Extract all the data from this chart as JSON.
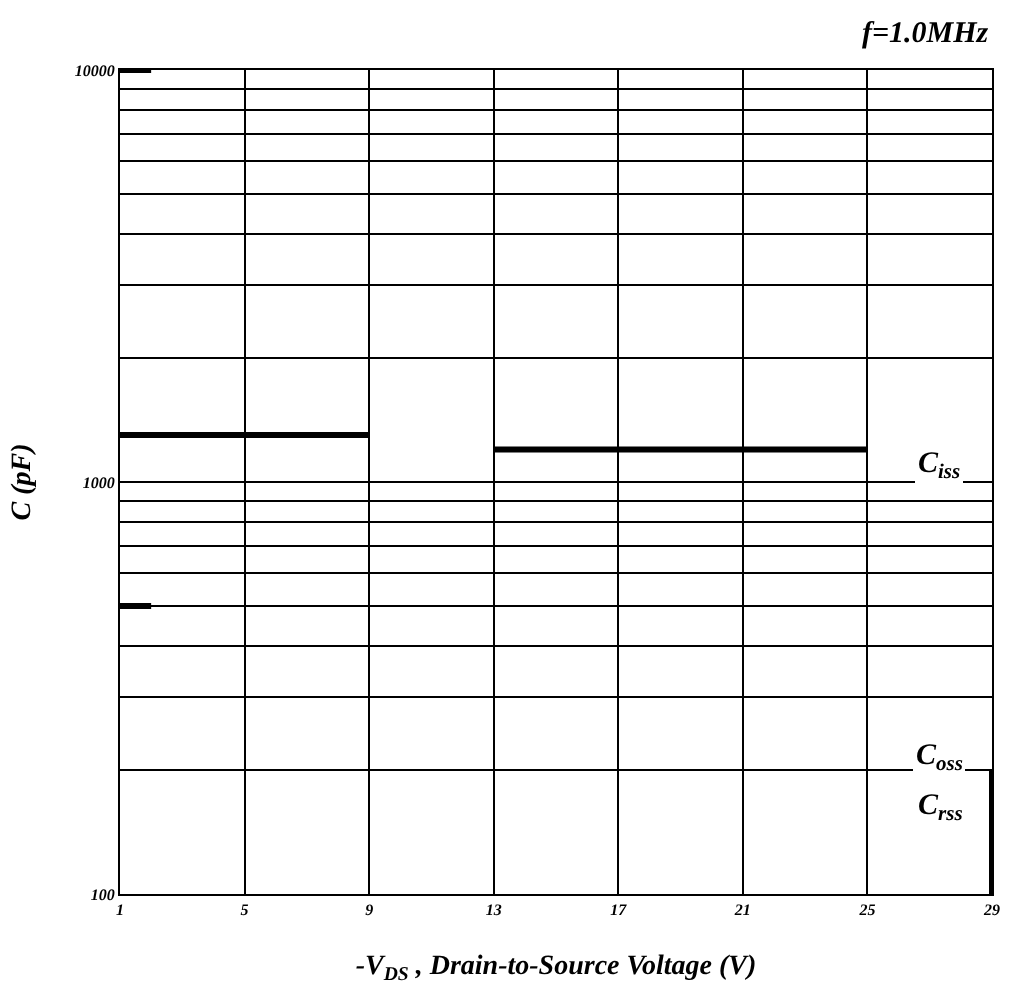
{
  "chart_data": {
    "type": "line",
    "title": "f=1.0MHz",
    "xlabel": "-V$_{DS}$ , Drain-to-Source Voltage (V)",
    "ylabel": "C (pF)",
    "series": [
      {
        "color": "#000000",
        "x": [
          1,
          9,
          11,
          13,
          25
        ],
        "values": [
          1300,
          1300,
          null,
          1200,
          1200
        ]
      },
      {
        "color": "#000000",
        "x": [
          1,
          2
        ],
        "values": [
          10000,
          10000
        ]
      },
      {
        "color": "#000000",
        "x": [
          1,
          2
        ],
        "values": [
          500,
          500
        ]
      },
      {
        "color": "#000000",
        "x": [
          29,
          29
        ],
        "values": [
          100,
          200
        ]
      }
    ],
    "xlim": [
      1,
      29
    ],
    "xticks": [
      1,
      5,
      9,
      13,
      17,
      21,
      25,
      29
    ],
    "ylim": [
      100,
      10000
    ],
    "yticks": [
      100,
      {
        "value": 200,
        "label": null
      },
      {
        "value": 300,
        "label": null
      },
      {
        "value": 400,
        "label": null
      },
      {
        "value": 500,
        "label": null
      },
      {
        "value": 600,
        "label": null
      },
      {
        "value": 700,
        "label": null
      },
      {
        "value": 800,
        "label": null
      },
      {
        "value": 900,
        "label": null
      },
      1000,
      {
        "value": 2000,
        "label": null
      },
      {
        "value": 3000,
        "label": null
      },
      {
        "value": 4000,
        "label": null
      },
      {
        "value": 5000,
        "label": null
      },
      {
        "value": 6000,
        "label": null
      },
      {
        "value": 7000,
        "label": null
      },
      {
        "value": 8000,
        "label": null
      },
      {
        "value": 9000,
        "label": null
      },
      10000
    ],
    "log": true,
    "grid": true,
    "marker": "none",
    "line_style": "solid",
    "annotations": [
      "C$_{iss}$",
      "C$_{oss}$",
      "C$_{rss}$"
    ]
  }
}
